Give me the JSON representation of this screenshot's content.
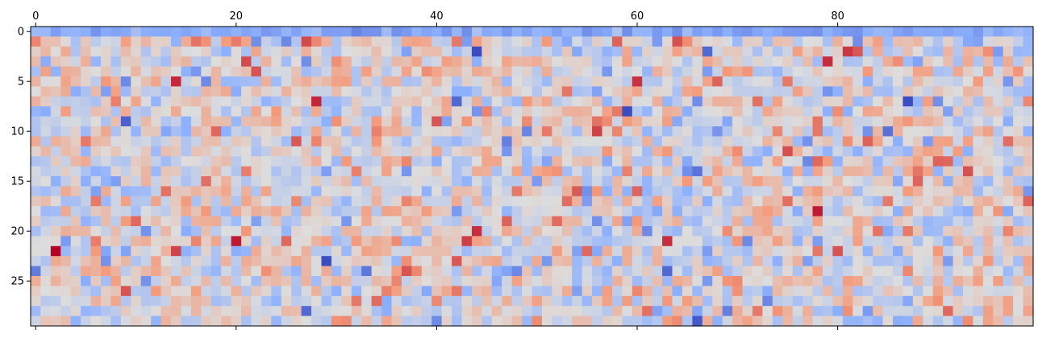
{
  "chart_data": {
    "type": "heatmap",
    "title": "",
    "xlabel": "",
    "ylabel": "",
    "colormap": "coolwarm",
    "grid": false,
    "n_rows": 30,
    "n_cols": 100,
    "x_ticks": [
      0,
      20,
      40,
      60,
      80
    ],
    "y_ticks": [
      0,
      5,
      10,
      15,
      20,
      25
    ],
    "x_tick_labels": [
      "0",
      "20",
      "40",
      "60",
      "80"
    ],
    "y_tick_labels": [
      "0",
      "5",
      "10",
      "15",
      "20",
      "25"
    ],
    "x_axis_position": "top and bottom",
    "value_range": [
      -3,
      3
    ],
    "note_values": "Random noise-like matrix; approx standard-normal values, row 0 near uniform (~ -1.8).",
    "seed": 8
  }
}
